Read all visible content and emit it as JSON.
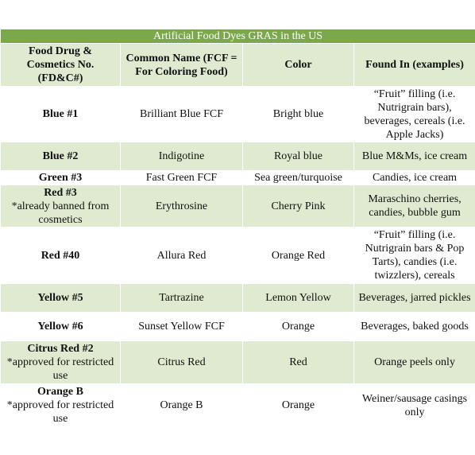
{
  "title": "Artificial Food Dyes GRAS in the US",
  "headers": [
    "Food Drug & Cosmetics No. (FD&C#)",
    "Common Name (FCF = For Coloring Food)",
    "Color",
    "Found In (examples)"
  ],
  "rows": [
    {
      "name": "Blue #1",
      "note": "",
      "common": "Brilliant Blue FCF",
      "color": "Bright blue",
      "found": "“Fruit” filling (i.e. Nutrigrain bars), beverages, cereals (i.e. Apple Jacks)"
    },
    {
      "name": "Blue #2",
      "note": "",
      "common": "Indigotine",
      "color": "Royal blue",
      "found": "Blue M&Ms, ice cream"
    },
    {
      "name": "Green #3",
      "note": "",
      "common": "Fast Green FCF",
      "color": "Sea green/turquoise",
      "found": "Candies, ice cream"
    },
    {
      "name": "Red #3",
      "note": "*already banned from cosmetics",
      "common": "Erythrosine",
      "color": "Cherry Pink",
      "found": "Maraschino cherries, candies, bubble gum"
    },
    {
      "name": "Red #40",
      "note": "",
      "common": "Allura Red",
      "color": "Orange Red",
      "found": "“Fruit” filling (i.e. Nutrigrain bars & Pop Tarts), candies (i.e. twizzlers), cereals"
    },
    {
      "name": "Yellow #5",
      "note": "",
      "common": "Tartrazine",
      "color": "Lemon Yellow",
      "found": "Beverages, jarred pickles"
    },
    {
      "name": "Yellow #6",
      "note": "",
      "common": "Sunset Yellow FCF",
      "color": "Orange",
      "found": "Beverages, baked goods"
    },
    {
      "name": "Citrus Red #2",
      "note": "*approved for restricted use",
      "common": "Citrus Red",
      "color": "Red",
      "found": "Orange peels only"
    },
    {
      "name": "Orange B",
      "note": "*approved for restricted use",
      "common": "Orange B",
      "color": "Orange",
      "found": "Weiner/sausage casings only"
    }
  ]
}
